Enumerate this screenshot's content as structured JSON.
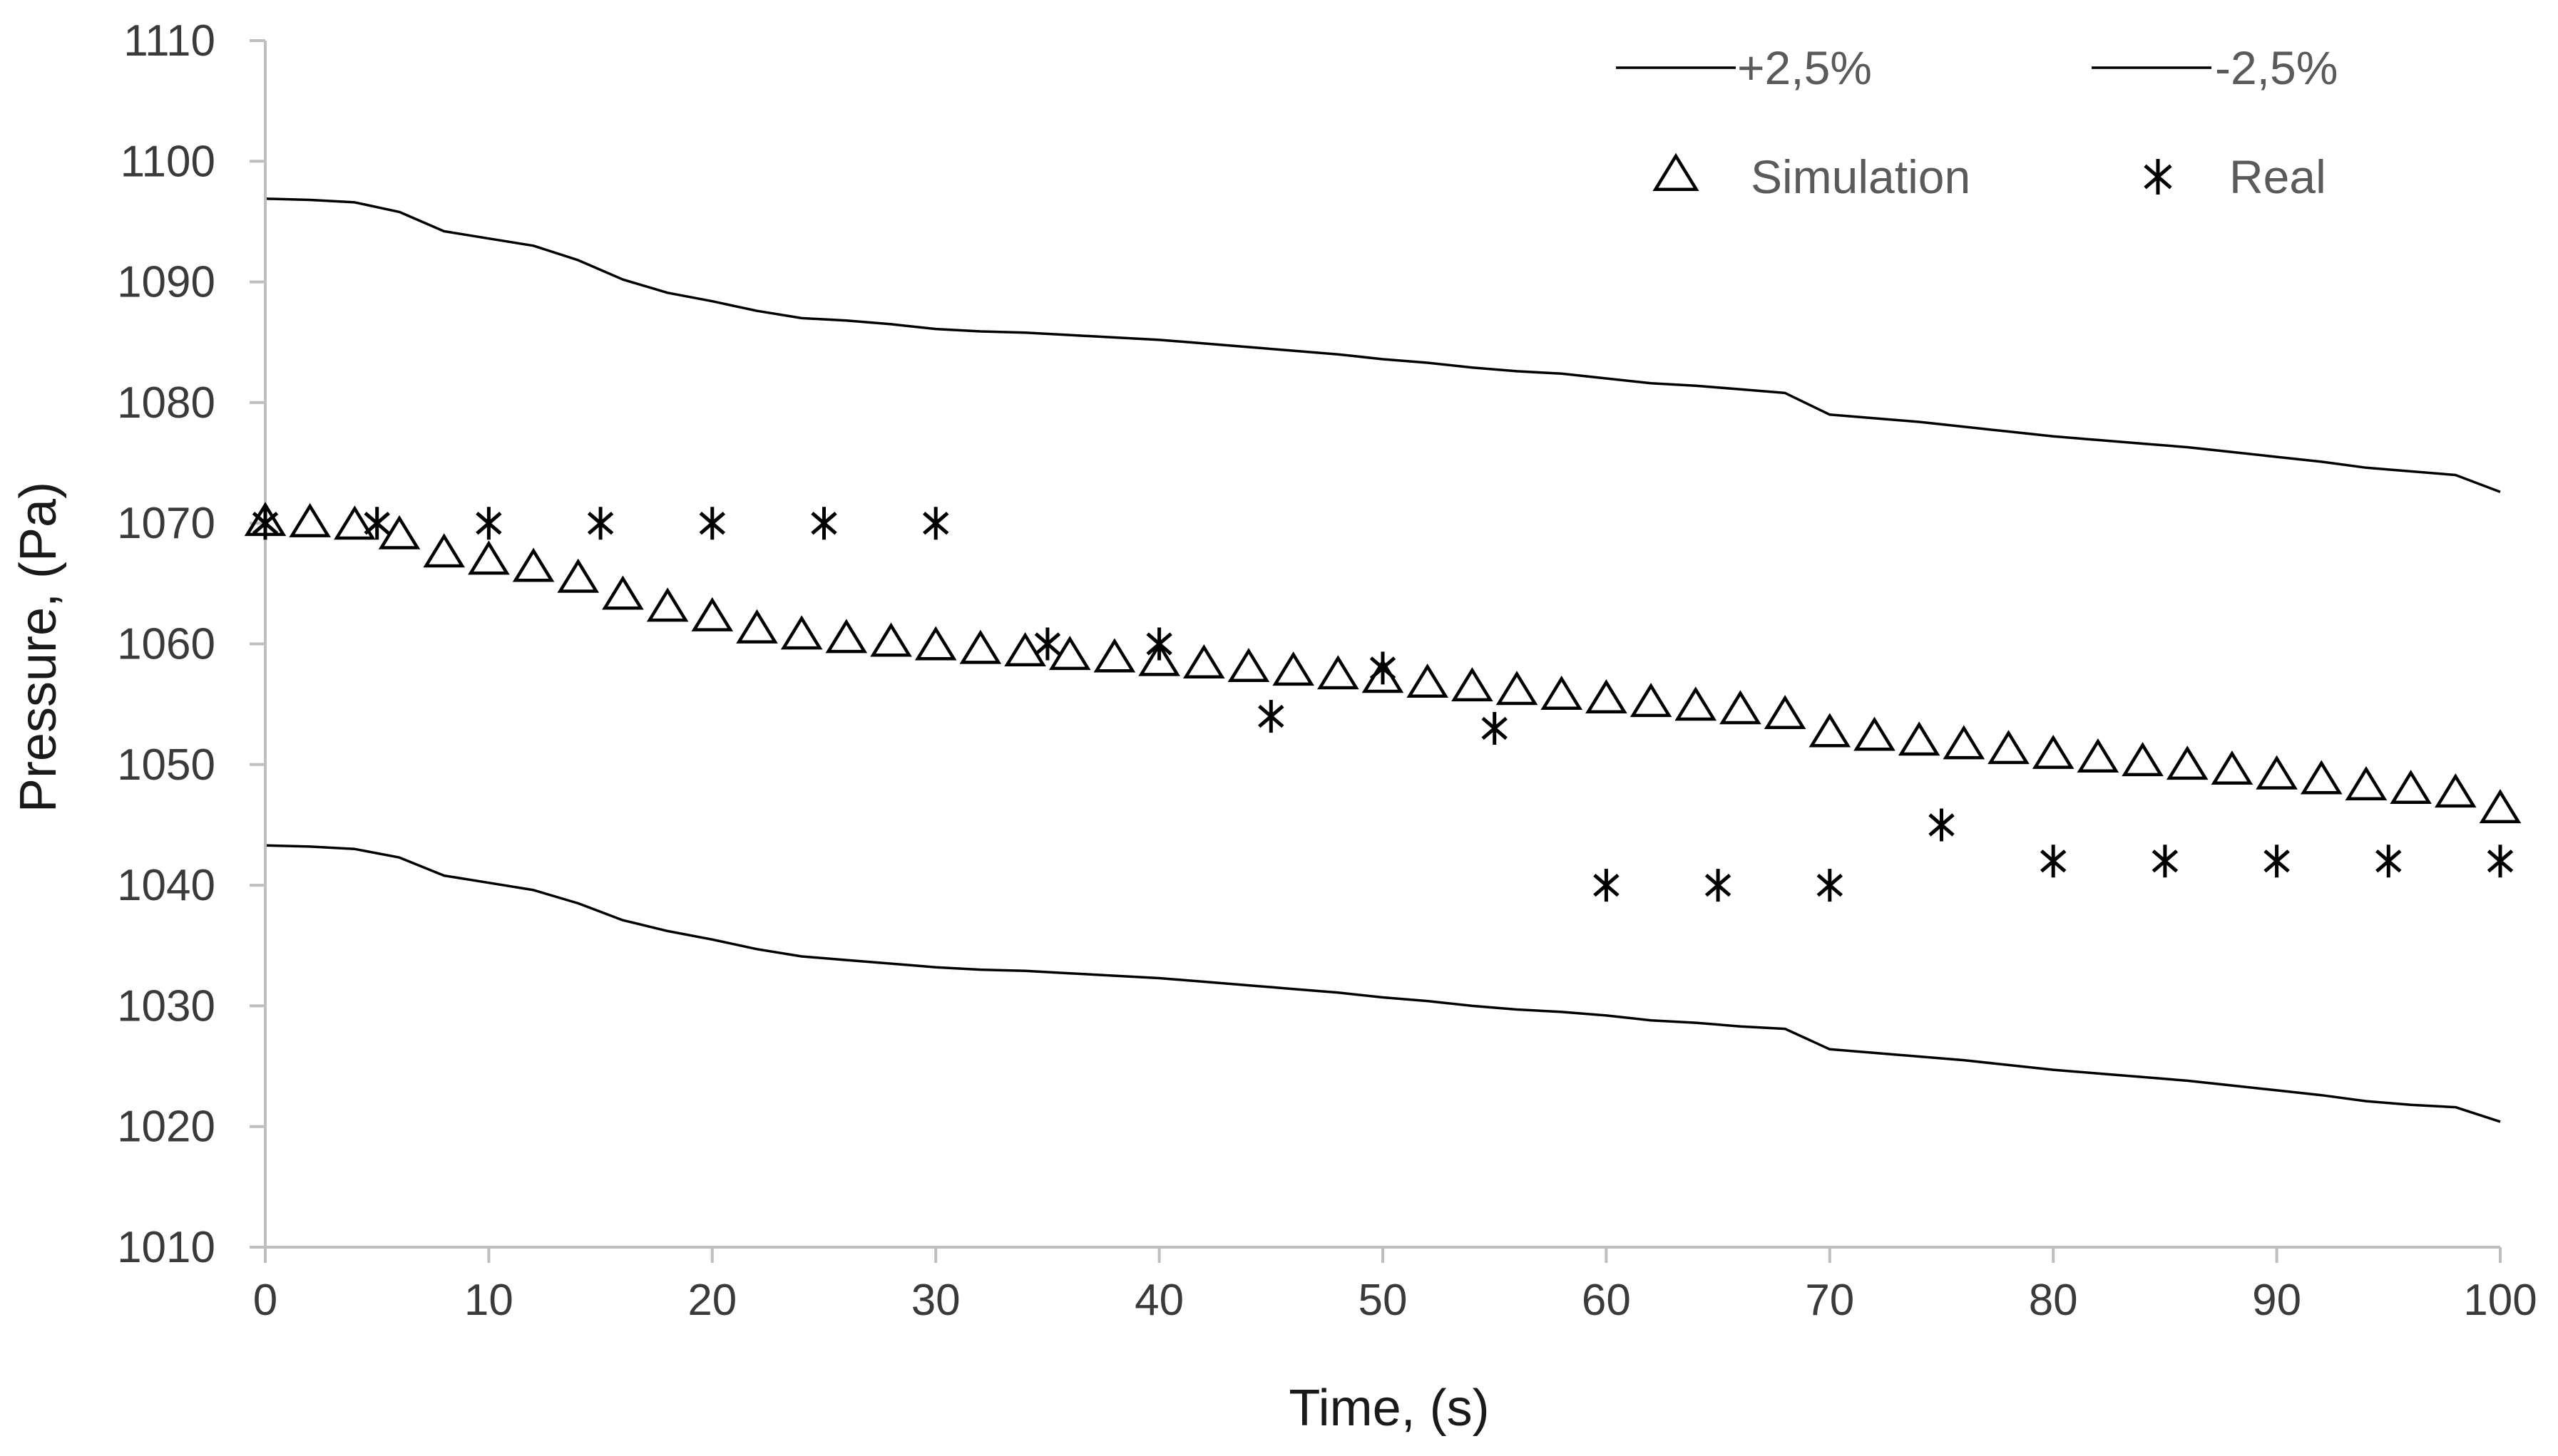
{
  "chart_data": {
    "type": "scatter",
    "title": "",
    "xlabel": "Time, (s)",
    "ylabel": "Pressure, (Pa)",
    "xlim": [
      0,
      100
    ],
    "ylim": [
      1010,
      1110
    ],
    "xticks": [
      0,
      10,
      20,
      30,
      40,
      50,
      60,
      70,
      80,
      90,
      100
    ],
    "yticks": [
      1010,
      1020,
      1030,
      1040,
      1050,
      1060,
      1070,
      1080,
      1090,
      1100,
      1110
    ],
    "grid": false,
    "legend_position": "top-right",
    "series": [
      {
        "name": "+2,5%",
        "kind": "line",
        "color": "#000000",
        "x": [
          0,
          2,
          4,
          6,
          8,
          10,
          12,
          14,
          16,
          18,
          20,
          22,
          24,
          26,
          28,
          30,
          32,
          34,
          36,
          38,
          40,
          42,
          44,
          46,
          48,
          50,
          52,
          54,
          56,
          58,
          60,
          62,
          64,
          66,
          68,
          70,
          72,
          74,
          76,
          78,
          80,
          82,
          84,
          86,
          88,
          90,
          92,
          94,
          96,
          98,
          100
        ],
        "y": [
          1096.9,
          1096.8,
          1096.6,
          1095.8,
          1094.2,
          1093.6,
          1093.0,
          1091.8,
          1090.2,
          1089.1,
          1088.4,
          1087.6,
          1087.0,
          1086.8,
          1086.5,
          1086.1,
          1085.9,
          1085.8,
          1085.6,
          1085.4,
          1085.2,
          1084.9,
          1084.6,
          1084.3,
          1084.0,
          1083.6,
          1083.3,
          1082.9,
          1082.6,
          1082.4,
          1082.0,
          1081.6,
          1081.4,
          1081.1,
          1080.8,
          1079.0,
          1078.7,
          1078.4,
          1078.0,
          1077.6,
          1077.2,
          1076.9,
          1076.6,
          1076.3,
          1075.9,
          1075.5,
          1075.1,
          1074.6,
          1074.3,
          1074.0,
          1072.6
        ]
      },
      {
        "name": "-2,5%",
        "kind": "line",
        "color": "#000000",
        "x": [
          0,
          2,
          4,
          6,
          8,
          10,
          12,
          14,
          16,
          18,
          20,
          22,
          24,
          26,
          28,
          30,
          32,
          34,
          36,
          38,
          40,
          42,
          44,
          46,
          48,
          50,
          52,
          54,
          56,
          58,
          60,
          62,
          64,
          66,
          68,
          70,
          72,
          74,
          76,
          78,
          80,
          82,
          84,
          86,
          88,
          90,
          92,
          94,
          96,
          98,
          100
        ],
        "y": [
          1043.3,
          1043.2,
          1043.0,
          1042.3,
          1040.8,
          1040.2,
          1039.6,
          1038.5,
          1037.1,
          1036.2,
          1035.5,
          1034.7,
          1034.1,
          1033.8,
          1033.5,
          1033.2,
          1033.0,
          1032.9,
          1032.7,
          1032.5,
          1032.3,
          1032.0,
          1031.7,
          1031.4,
          1031.1,
          1030.7,
          1030.4,
          1030.0,
          1029.7,
          1029.5,
          1029.2,
          1028.8,
          1028.6,
          1028.3,
          1028.1,
          1026.4,
          1026.1,
          1025.8,
          1025.5,
          1025.1,
          1024.7,
          1024.4,
          1024.1,
          1023.8,
          1023.4,
          1023.0,
          1022.6,
          1022.1,
          1021.8,
          1021.6,
          1020.4
        ]
      },
      {
        "name": "Simulation",
        "kind": "marker",
        "marker": "triangle",
        "color": "#000000",
        "x": [
          0,
          2,
          4,
          6,
          8,
          10,
          12,
          14,
          16,
          18,
          20,
          22,
          24,
          26,
          28,
          30,
          32,
          34,
          36,
          38,
          40,
          42,
          44,
          46,
          48,
          50,
          52,
          54,
          56,
          58,
          60,
          62,
          64,
          66,
          68,
          70,
          72,
          74,
          76,
          78,
          80,
          82,
          84,
          86,
          88,
          90,
          92,
          94,
          96,
          98,
          100
        ],
        "y": [
          1070.0,
          1069.9,
          1069.7,
          1068.9,
          1067.4,
          1066.8,
          1066.2,
          1065.3,
          1063.9,
          1062.9,
          1062.1,
          1061.1,
          1060.6,
          1060.3,
          1060.0,
          1059.7,
          1059.4,
          1059.2,
          1058.9,
          1058.7,
          1058.4,
          1058.2,
          1057.9,
          1057.6,
          1057.3,
          1057.0,
          1056.6,
          1056.3,
          1056.0,
          1055.6,
          1055.3,
          1055.0,
          1054.7,
          1054.4,
          1054.0,
          1052.5,
          1052.2,
          1051.8,
          1051.5,
          1051.1,
          1050.7,
          1050.4,
          1050.1,
          1049.8,
          1049.4,
          1049.0,
          1048.6,
          1048.1,
          1047.8,
          1047.5,
          1046.2
        ]
      },
      {
        "name": "Real",
        "kind": "marker",
        "marker": "asterisk",
        "color": "#000000",
        "x": [
          0,
          5,
          10,
          15,
          20,
          25,
          30,
          35,
          40,
          45,
          50,
          55,
          60,
          65,
          70,
          75,
          80,
          85,
          90,
          95,
          100
        ],
        "y": [
          1070,
          1070,
          1070,
          1070,
          1070,
          1070,
          1070,
          1060,
          1060,
          1054,
          1058,
          1053,
          1040,
          1040,
          1040,
          1045,
          1042,
          1042,
          1042,
          1042,
          1042
        ]
      }
    ]
  }
}
